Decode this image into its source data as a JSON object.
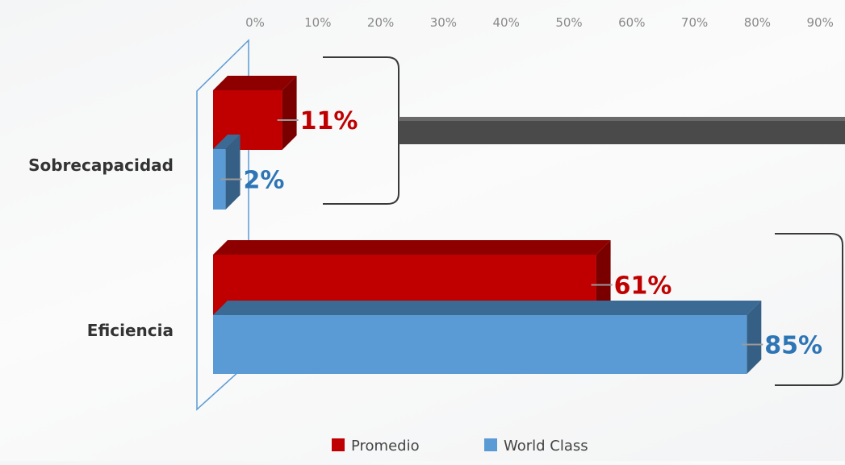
{
  "chart_data": {
    "type": "bar",
    "orientation": "horizontal",
    "title": "",
    "xlabel": "",
    "ylabel": "",
    "x_ticks": [
      "0%",
      "10%",
      "20%",
      "30%",
      "40%",
      "50%",
      "60%",
      "70%",
      "80%",
      "90%"
    ],
    "xlim": [
      0,
      90
    ],
    "categories": [
      "Sobrecapacidad",
      "Eficiencia"
    ],
    "series": [
      {
        "name": "Promedio",
        "values": [
          11,
          61
        ],
        "labels": [
          "11%",
          "61%"
        ],
        "color": "#c00000"
      },
      {
        "name": "World Class",
        "values": [
          2,
          85
        ],
        "labels": [
          "2%",
          "85%"
        ],
        "color": "#5b9bd5"
      }
    ],
    "legend_position": "bottom",
    "grid": false,
    "axis_position": "top"
  }
}
